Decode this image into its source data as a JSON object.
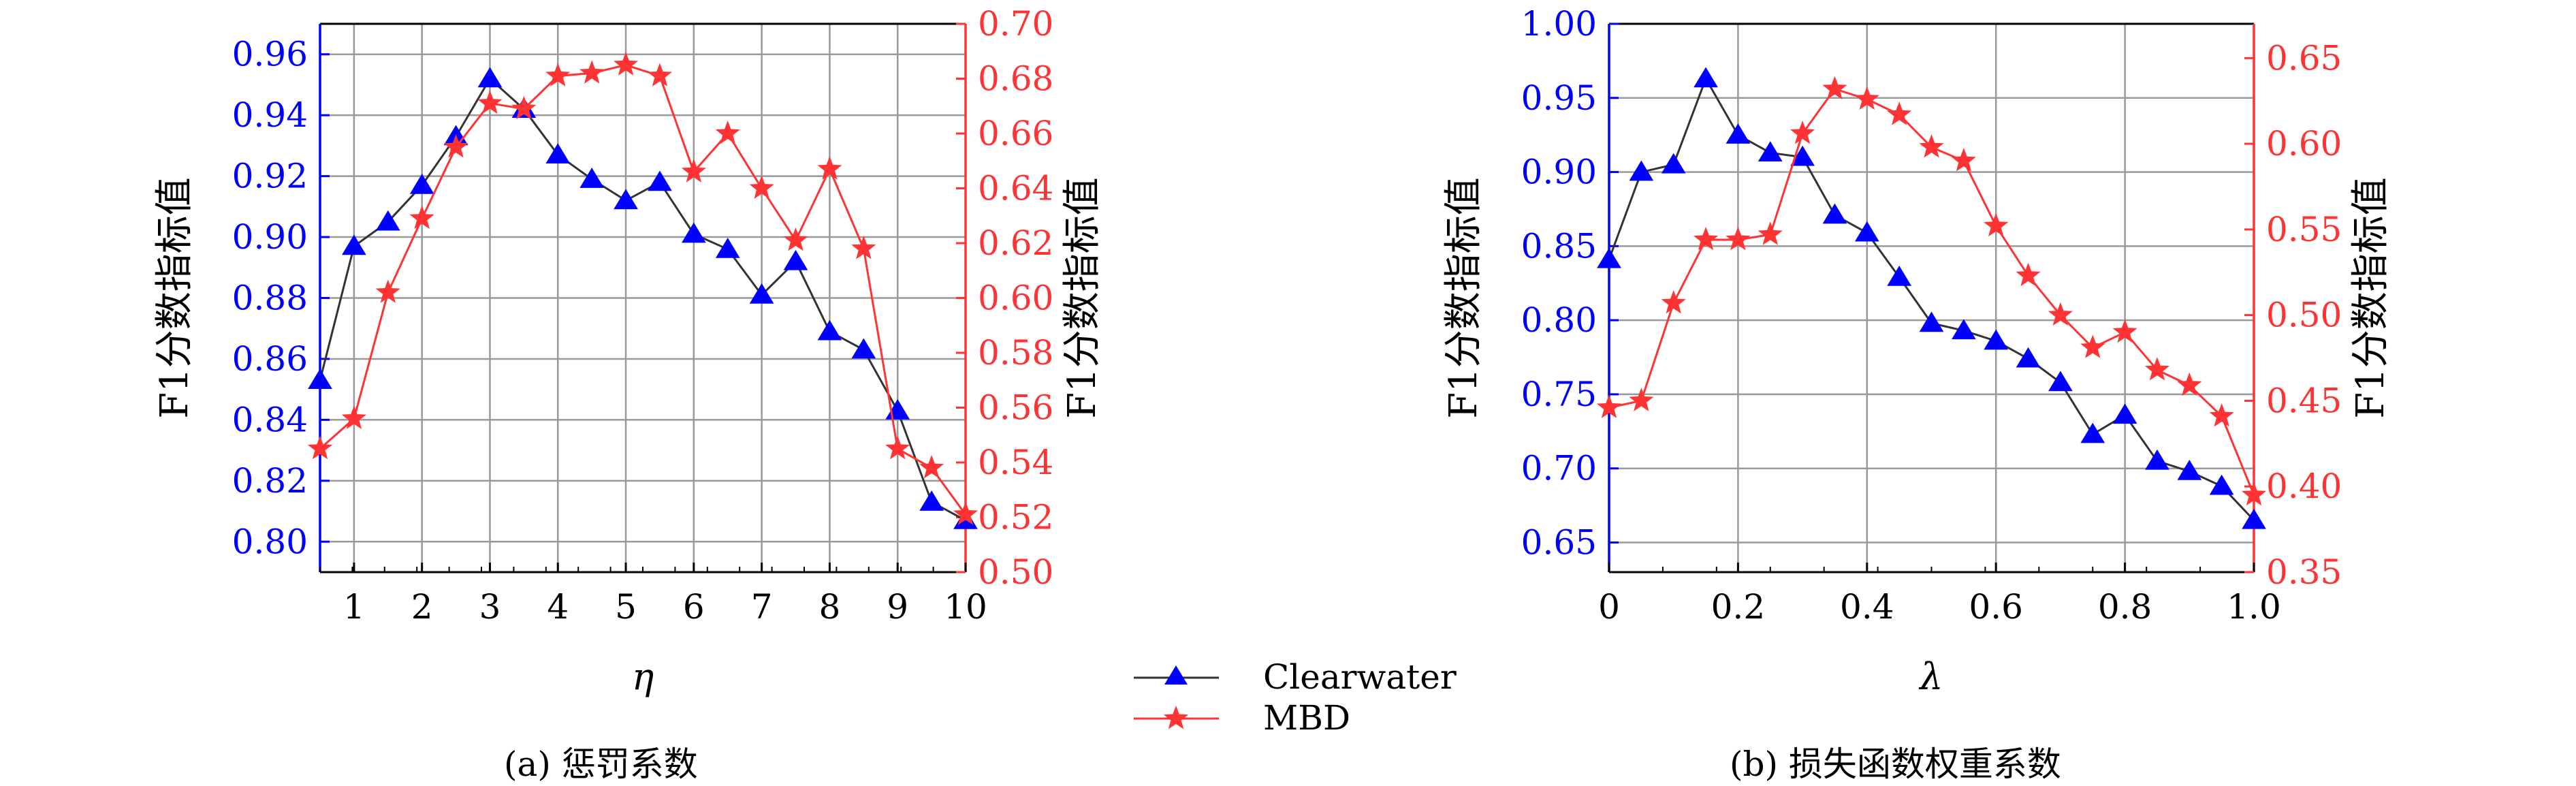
{
  "legend": {
    "entries": [
      {
        "name": "Clearwater",
        "color": "#0000ff",
        "line_color": "#333333",
        "marker": "triangle-up"
      },
      {
        "name": "MBD",
        "color": "#ff3333",
        "line_color": "#ff3333",
        "marker": "star"
      }
    ]
  },
  "colors": {
    "left_axis": "#0000ff",
    "right_axis": "#ff3333",
    "grid": "#999999"
  },
  "chart_data": [
    {
      "type": "line",
      "caption": "(a) 惩罚系数",
      "xlabel": "η",
      "ylabel_left": "F1分数指标值",
      "ylabel_right": "F1分数指标值",
      "xlim": [
        0.5,
        10
      ],
      "xticks": [
        "1",
        "2",
        "3",
        "4",
        "5",
        "6",
        "7",
        "8",
        "9",
        "10"
      ],
      "ylim_left": [
        0.79,
        0.97
      ],
      "yticks_left": [
        "0.80",
        "0.82",
        "0.84",
        "0.86",
        "0.88",
        "0.90",
        "0.92",
        "0.94",
        "0.96"
      ],
      "ylim_right": [
        0.5,
        0.7
      ],
      "yticks_right": [
        "0.50",
        "0.52",
        "0.54",
        "0.56",
        "0.58",
        "0.60",
        "0.62",
        "0.64",
        "0.66",
        "0.68",
        "0.70"
      ],
      "grid": true,
      "x": [
        0.5,
        1,
        1.5,
        2,
        2.5,
        3,
        3.5,
        4,
        4.5,
        5,
        5.5,
        6,
        6.5,
        7,
        7.5,
        8,
        8.5,
        9,
        9.5,
        10
      ],
      "series": [
        {
          "name": "Clearwater",
          "axis": "left",
          "values": [
            0.853,
            0.897,
            0.905,
            0.917,
            0.933,
            0.952,
            0.942,
            0.927,
            0.919,
            0.912,
            0.918,
            0.901,
            0.896,
            0.881,
            0.892,
            0.869,
            0.863,
            0.843,
            0.813,
            0.807
          ]
        },
        {
          "name": "MBD",
          "axis": "right",
          "values": [
            0.545,
            0.556,
            0.602,
            0.629,
            0.655,
            0.671,
            0.669,
            0.681,
            0.682,
            0.685,
            0.681,
            0.646,
            0.66,
            0.64,
            0.621,
            0.647,
            0.618,
            0.545,
            0.538,
            0.521
          ]
        }
      ]
    },
    {
      "type": "line",
      "caption": "(b) 损失函数权重系数",
      "xlabel": "λ",
      "ylabel_left": "F1分数指标值",
      "ylabel_right": "F1分数指标值",
      "xlim": [
        0,
        1.0
      ],
      "xticks": [
        "0",
        "0.2",
        "0.4",
        "0.6",
        "0.8",
        "1.0"
      ],
      "ylim_left": [
        0.63,
        1.0
      ],
      "yticks_left": [
        "0.65",
        "0.70",
        "0.75",
        "0.80",
        "0.85",
        "0.90",
        "0.95",
        "1.00"
      ],
      "ylim_right": [
        0.35,
        0.67
      ],
      "yticks_right": [
        "0.35",
        "0.40",
        "0.45",
        "0.50",
        "0.55",
        "0.60",
        "0.65"
      ],
      "grid": true,
      "x": [
        0,
        0.05,
        0.1,
        0.15,
        0.2,
        0.25,
        0.3,
        0.35,
        0.4,
        0.45,
        0.5,
        0.55,
        0.6,
        0.65,
        0.7,
        0.75,
        0.8,
        0.85,
        0.9,
        0.95,
        1.0
      ],
      "series": [
        {
          "name": "Clearwater",
          "axis": "left",
          "values": [
            0.841,
            0.9,
            0.905,
            0.963,
            0.925,
            0.913,
            0.91,
            0.871,
            0.859,
            0.829,
            0.798,
            0.793,
            0.786,
            0.774,
            0.758,
            0.723,
            0.736,
            0.705,
            0.698,
            0.688,
            0.665
          ]
        },
        {
          "name": "MBD",
          "axis": "right",
          "values": [
            0.446,
            0.45,
            0.507,
            0.544,
            0.544,
            0.547,
            0.606,
            0.632,
            0.626,
            0.617,
            0.598,
            0.59,
            0.552,
            0.523,
            0.5,
            0.481,
            0.49,
            0.468,
            0.459,
            0.441,
            0.395
          ]
        }
      ]
    }
  ]
}
